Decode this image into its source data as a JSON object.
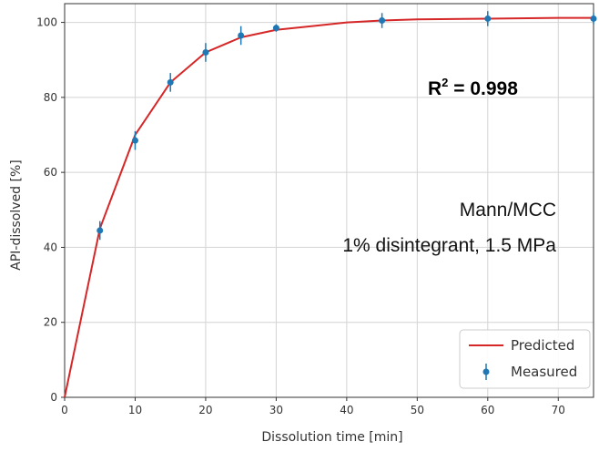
{
  "chart_data": {
    "type": "line",
    "xlabel": "Dissolution time [min]",
    "ylabel": "API-dissolved [%]",
    "xlim": [
      0,
      75
    ],
    "ylim": [
      0,
      105
    ],
    "xticks": [
      0,
      10,
      20,
      30,
      40,
      50,
      60,
      70
    ],
    "yticks": [
      0,
      20,
      40,
      60,
      80,
      100
    ],
    "grid": true,
    "legend_position": "bottom-right",
    "series": [
      {
        "name": "Predicted",
        "style": "line",
        "color": "#d62728",
        "x": [
          0,
          5,
          10,
          15,
          20,
          25,
          30,
          35,
          40,
          45,
          50,
          60,
          70,
          75
        ],
        "y": [
          0,
          45,
          70,
          84,
          92,
          96,
          98,
          99,
          100,
          100.5,
          100.8,
          101,
          101.2,
          101.2
        ]
      },
      {
        "name": "Measured",
        "style": "errorbar",
        "color": "#1f77b4",
        "x": [
          5,
          10,
          15,
          20,
          25,
          30,
          45,
          60,
          75
        ],
        "y": [
          44.5,
          68.5,
          84,
          92,
          96.5,
          98.5,
          100.5,
          101,
          101
        ],
        "err": [
          2.5,
          2.5,
          2.5,
          2.5,
          2.5,
          1.0,
          2.0,
          2.0,
          1.5
        ]
      }
    ],
    "annotations": {
      "r2_label": "R",
      "r2_sup": "2",
      "r2_value": " = 0.998",
      "line1": "Mann/MCC",
      "line2": "1% disintegrant, 1.5 MPa"
    }
  }
}
